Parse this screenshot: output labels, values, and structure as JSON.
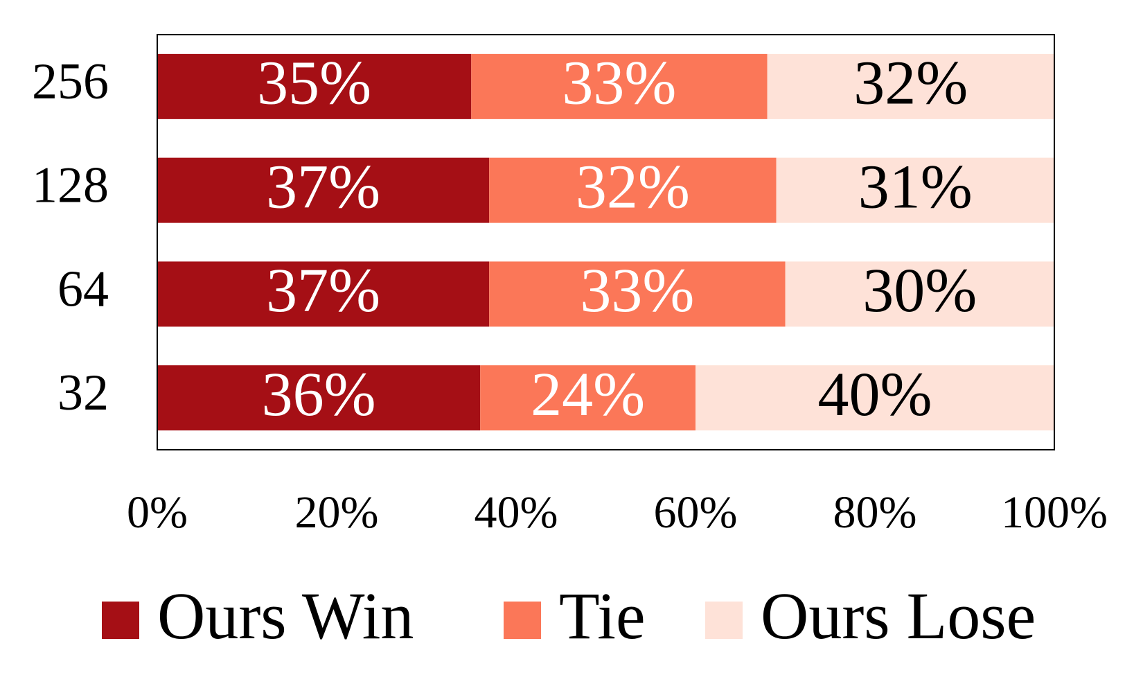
{
  "chart_data": {
    "type": "stacked-barh",
    "categories": [
      "256",
      "128",
      "64",
      "32"
    ],
    "series": [
      {
        "name": "Ours Win",
        "color": "#a50f15",
        "label_color": "#ffffff",
        "values": [
          35,
          37,
          37,
          36
        ],
        "value_labels": [
          "35%",
          "37%",
          "37%",
          "36%"
        ]
      },
      {
        "name": "Tie",
        "color": "#fb7758",
        "label_color": "#ffffff",
        "values": [
          33,
          32,
          33,
          24
        ],
        "value_labels": [
          "33%",
          "32%",
          "33%",
          "24%"
        ]
      },
      {
        "name": "Ours Lose",
        "color": "#fee2d8",
        "label_color": "#000000",
        "values": [
          32,
          31,
          30,
          40
        ],
        "value_labels": [
          "32%",
          "31%",
          "30%",
          "40%"
        ]
      }
    ],
    "xlim": [
      0,
      100
    ],
    "xticks": [
      {
        "value": 0,
        "label": "0%"
      },
      {
        "value": 20,
        "label": "20%"
      },
      {
        "value": 40,
        "label": "40%"
      },
      {
        "value": 60,
        "label": "60%"
      },
      {
        "value": 80,
        "label": "80%"
      },
      {
        "value": 100,
        "label": "100%"
      }
    ],
    "legend": "bottom"
  }
}
